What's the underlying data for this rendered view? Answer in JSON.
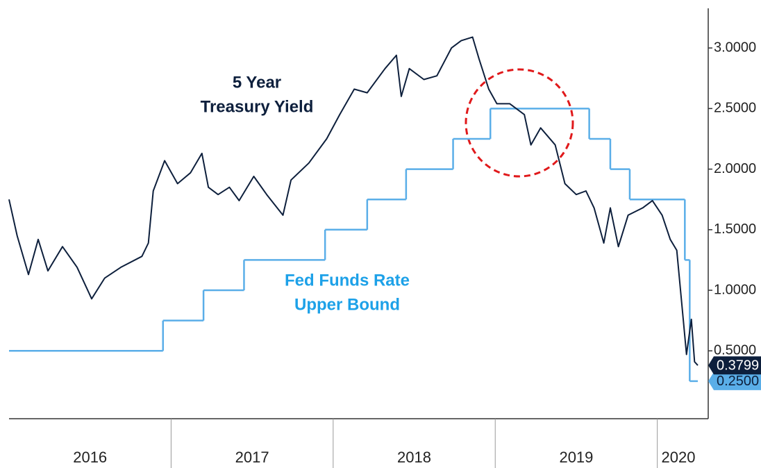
{
  "chart_data": {
    "type": "line",
    "annotations": [
      "5 Year",
      "Treasury Yield",
      "Fed Funds Rate",
      "Upper Bound"
    ],
    "xlim": [
      2016.0,
      2020.25
    ],
    "xticks": [
      {
        "value": 2016.5,
        "label": "2016"
      },
      {
        "value": 2017.5,
        "label": "2017"
      },
      {
        "value": 2018.5,
        "label": "2018"
      },
      {
        "value": 2019.5,
        "label": "2019"
      },
      {
        "value": 2020.13,
        "label": "2020"
      }
    ],
    "xseparators": [
      2017,
      2018,
      2019,
      2020
    ],
    "ylim": [
      -0.06,
      3.31
    ],
    "yticks": [
      {
        "value": 0.5,
        "label": "0.5000"
      },
      {
        "value": 1.0,
        "label": "1.0000"
      },
      {
        "value": 1.5,
        "label": "1.5000"
      },
      {
        "value": 2.0,
        "label": "2.0000"
      },
      {
        "value": 2.5,
        "label": "2.5000"
      },
      {
        "value": 3.0,
        "label": "3.0000"
      }
    ],
    "series": [
      {
        "name": "5 Year Treasury Yield",
        "color": "#0d1f3c",
        "end_label": "0.3799",
        "x": [
          2016.0,
          2016.05,
          2016.12,
          2016.18,
          2016.24,
          2016.33,
          2016.42,
          2016.51,
          2016.59,
          2016.69,
          2016.82,
          2016.86,
          2016.89,
          2016.96,
          2017.04,
          2017.12,
          2017.19,
          2017.23,
          2017.29,
          2017.36,
          2017.42,
          2017.51,
          2017.59,
          2017.69,
          2017.74,
          2017.85,
          2017.96,
          2018.04,
          2018.13,
          2018.21,
          2018.32,
          2018.39,
          2018.42,
          2018.47,
          2018.56,
          2018.64,
          2018.73,
          2018.79,
          2018.86,
          2018.9,
          2018.96,
          2019.01,
          2019.09,
          2019.18,
          2019.22,
          2019.28,
          2019.37,
          2019.43,
          2019.5,
          2019.56,
          2019.61,
          2019.67,
          2019.71,
          2019.76,
          2019.82,
          2019.91,
          2019.97,
          2020.03,
          2020.08,
          2020.12,
          2020.16,
          2020.18,
          2020.21,
          2020.23,
          2020.25
        ],
        "values": [
          1.75,
          1.45,
          1.13,
          1.42,
          1.16,
          1.36,
          1.19,
          0.93,
          1.1,
          1.19,
          1.28,
          1.39,
          1.82,
          2.07,
          1.88,
          1.97,
          2.13,
          1.85,
          1.79,
          1.85,
          1.74,
          1.94,
          1.79,
          1.62,
          1.91,
          2.05,
          2.25,
          2.45,
          2.66,
          2.63,
          2.83,
          2.94,
          2.6,
          2.83,
          2.74,
          2.77,
          3.0,
          3.06,
          3.09,
          2.91,
          2.66,
          2.54,
          2.54,
          2.45,
          2.2,
          2.34,
          2.2,
          1.88,
          1.79,
          1.82,
          1.68,
          1.39,
          1.68,
          1.36,
          1.62,
          1.68,
          1.74,
          1.62,
          1.42,
          1.33,
          0.76,
          0.47,
          0.76,
          0.41,
          0.3799
        ]
      },
      {
        "name": "Fed Funds Rate Upper Bound",
        "color": "#5aaee8",
        "step": true,
        "end_label": "0.2500",
        "x": [
          2016.0,
          2016.95,
          2017.2,
          2017.45,
          2017.95,
          2018.21,
          2018.45,
          2018.74,
          2018.97,
          2019.58,
          2019.71,
          2019.83,
          2020.17,
          2020.2,
          2020.25
        ],
        "values": [
          0.5,
          0.75,
          1.0,
          1.25,
          1.5,
          1.75,
          2.0,
          2.25,
          2.5,
          2.25,
          2.0,
          1.75,
          1.25,
          0.25,
          0.25
        ]
      }
    ]
  }
}
